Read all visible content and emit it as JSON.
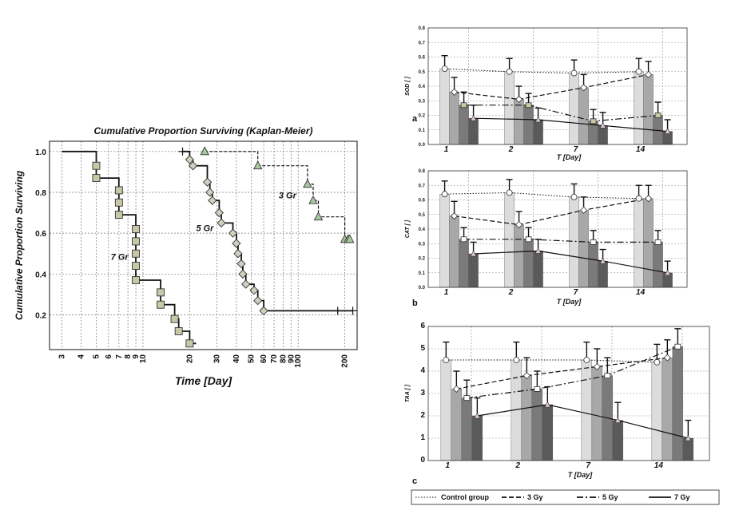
{
  "chart_data": [
    {
      "type": "line",
      "subtype": "kaplan-meier step",
      "title": "Cumulative Proportion Surviving (Kaplan-Meier)",
      "xlabel": "Time [Day]",
      "ylabel": "Cumulative Proportion Surviving",
      "x_scale": "log",
      "xlim": [
        2.5,
        240
      ],
      "ylim": [
        0.03,
        1.05
      ],
      "x_ticks": [
        3,
        4,
        5,
        6,
        7,
        8,
        9,
        10,
        20,
        30,
        40,
        50,
        60,
        70,
        80,
        90,
        100,
        200
      ],
      "y_ticks": [
        0.2,
        0.4,
        0.6,
        0.8,
        1.0
      ],
      "grid": true,
      "series": [
        {
          "name": "7 Gr",
          "marker": "square",
          "color": "#c8c8a8",
          "start": [
            3,
            1.0
          ],
          "steps": [
            [
              5,
              0.93
            ],
            [
              5,
              0.87
            ],
            [
              7,
              0.81
            ],
            [
              7,
              0.75
            ],
            [
              7,
              0.69
            ],
            [
              9,
              0.62
            ],
            [
              9,
              0.56
            ],
            [
              9,
              0.5
            ],
            [
              9,
              0.44
            ],
            [
              9,
              0.37
            ],
            [
              13,
              0.31
            ],
            [
              13,
              0.25
            ],
            [
              16,
              0.18
            ],
            [
              17,
              0.12
            ],
            [
              20,
              0.06
            ]
          ],
          "end": 22
        },
        {
          "name": "5 Gr",
          "marker": "diamond",
          "color": "#d0d0c0",
          "start": [
            18,
            1.0
          ],
          "steps": [
            [
              20,
              0.96
            ],
            [
              21,
              0.93
            ],
            [
              26,
              0.85
            ],
            [
              27,
              0.8
            ],
            [
              28,
              0.76
            ],
            [
              31,
              0.7
            ],
            [
              32,
              0.65
            ],
            [
              38,
              0.6
            ],
            [
              40,
              0.55
            ],
            [
              41,
              0.5
            ],
            [
              43,
              0.45
            ],
            [
              44,
              0.4
            ],
            [
              46,
              0.35
            ],
            [
              52,
              0.32
            ],
            [
              55,
              0.27
            ],
            [
              60,
              0.22
            ]
          ],
          "end": 225,
          "censored": [
            18,
            180,
            225
          ]
        },
        {
          "name": "3 Gr",
          "marker": "triangle",
          "color": "#a8c8a0",
          "start": [
            25,
            1.0
          ],
          "steps": [
            [
              55,
              0.93
            ],
            [
              115,
              0.84
            ],
            [
              125,
              0.76
            ],
            [
              135,
              0.68
            ],
            [
              200,
              0.57
            ],
            [
              210,
              0.57
            ],
            [
              215,
              0.57
            ]
          ],
          "end": 220
        }
      ],
      "group_labels": [
        "7 Gr",
        "5 Gr",
        "3 Gr"
      ]
    },
    {
      "type": "bar",
      "panel": "a",
      "ylabel": "SOD [ ]",
      "xlabel": "T [Day]",
      "categories": [
        "1",
        "2",
        "7",
        "14"
      ],
      "ylim": [
        0,
        0.8
      ],
      "y_ticks": [
        "0.0",
        "0.1",
        "0.2",
        "0.3",
        "0.4",
        "0.5",
        "0.6",
        "0.7",
        "0.8"
      ],
      "series": [
        {
          "name": "Control group",
          "values": [
            0.52,
            0.5,
            0.49,
            0.5
          ],
          "errors": [
            0.09,
            0.09,
            0.09,
            0.09
          ]
        },
        {
          "name": "3 Gy",
          "values": [
            0.36,
            0.31,
            0.39,
            0.48
          ],
          "errors": [
            0.1,
            0.09,
            0.09,
            0.09
          ]
        },
        {
          "name": "5 Gy",
          "values": [
            0.27,
            0.27,
            0.16,
            0.2
          ],
          "errors": [
            0.09,
            0.08,
            0.08,
            0.09
          ]
        },
        {
          "name": "7 Gy",
          "values": [
            0.18,
            0.17,
            0.13,
            0.09
          ],
          "errors": [
            0.09,
            0.08,
            0.09,
            0.08
          ]
        }
      ]
    },
    {
      "type": "bar",
      "panel": "b",
      "ylabel": "CAT [ ]",
      "xlabel": "T [Day]",
      "categories": [
        "1",
        "2",
        "7",
        "14"
      ],
      "ylim": [
        0,
        0.8
      ],
      "y_ticks": [
        "0.0",
        "0.1",
        "0.2",
        "0.3",
        "0.4",
        "0.5",
        "0.6",
        "0.7",
        "0.8"
      ],
      "series": [
        {
          "name": "Control group",
          "values": [
            0.64,
            0.65,
            0.62,
            0.61
          ],
          "errors": [
            0.09,
            0.09,
            0.09,
            0.09
          ]
        },
        {
          "name": "3 Gy",
          "values": [
            0.49,
            0.43,
            0.53,
            0.61
          ],
          "errors": [
            0.1,
            0.09,
            0.09,
            0.09
          ]
        },
        {
          "name": "5 Gy",
          "values": [
            0.33,
            0.33,
            0.31,
            0.31
          ],
          "errors": [
            0.08,
            0.08,
            0.08,
            0.08
          ]
        },
        {
          "name": "7 Gy",
          "values": [
            0.23,
            0.25,
            0.18,
            0.1
          ],
          "errors": [
            0.08,
            0.08,
            0.08,
            0.08
          ]
        }
      ]
    },
    {
      "type": "bar",
      "panel": "c",
      "ylabel": "TAA [ ]",
      "xlabel": "T [Day]",
      "categories": [
        "1",
        "2",
        "7",
        "14"
      ],
      "ylim": [
        0,
        6
      ],
      "y_ticks": [
        "0",
        "1",
        "2",
        "3",
        "4",
        "5",
        "6"
      ],
      "series": [
        {
          "name": "Control group",
          "values": [
            4.5,
            4.5,
            4.5,
            4.4
          ],
          "errors": [
            0.8,
            0.8,
            0.8,
            0.8
          ]
        },
        {
          "name": "3 Gy",
          "values": [
            3.2,
            3.8,
            4.2,
            4.6
          ],
          "errors": [
            0.8,
            0.8,
            0.8,
            0.8
          ]
        },
        {
          "name": "5 Gy",
          "values": [
            2.8,
            3.2,
            3.8,
            5.1
          ],
          "errors": [
            0.8,
            0.8,
            0.8,
            0.8
          ]
        },
        {
          "name": "7 Gy",
          "values": [
            2.0,
            2.5,
            1.8,
            1.0
          ],
          "errors": [
            0.8,
            0.8,
            0.8,
            0.8
          ]
        }
      ]
    }
  ],
  "legend": {
    "items": [
      "Control group",
      "3 Gy",
      "5 Gy",
      "7 Gy"
    ]
  }
}
